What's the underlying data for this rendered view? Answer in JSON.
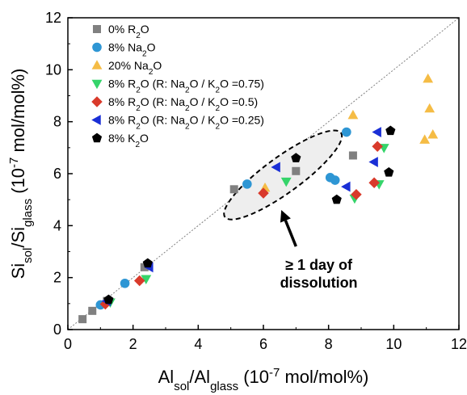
{
  "chart_data": {
    "type": "scatter",
    "xlim": [
      0,
      12
    ],
    "ylim": [
      0,
      12
    ],
    "x_ticks": [
      0,
      2,
      4,
      6,
      8,
      10,
      12
    ],
    "y_ticks": [
      0,
      2,
      4,
      6,
      8,
      10,
      12
    ],
    "x_tick_labels": [
      "0",
      "2",
      "4",
      "6",
      "8",
      "10",
      "12"
    ],
    "y_tick_labels": [
      "0",
      "2",
      "4",
      "6",
      "8",
      "10",
      "12"
    ],
    "xlabel": {
      "pre": "Al",
      "sub1": "sol",
      "mid": "/Al",
      "sub2": "glass",
      "post": " (10",
      "sup": "-7",
      "tail": " mol/mol%)"
    },
    "ylabel": {
      "pre": "Si",
      "sub1": "sol",
      "mid": "/Si",
      "sub2": "glass",
      "post": " (10",
      "sup": "-7",
      "tail": " mol/mol%)"
    },
    "reference_line": {
      "style": "dashed",
      "color": "#808080",
      "from": [
        0,
        0
      ],
      "to": [
        12,
        12
      ]
    },
    "grid": false,
    "legend_position": "top-left",
    "series": [
      {
        "name": "0% R2O",
        "label": [
          {
            "t": "0% R"
          },
          {
            "t": "2",
            "sub": true
          },
          {
            "t": "O"
          }
        ],
        "marker": "square",
        "color": "#808080",
        "points": [
          [
            0.45,
            0.4
          ],
          [
            0.75,
            0.72
          ],
          [
            1.2,
            1.1
          ],
          [
            2.35,
            2.4
          ],
          [
            5.1,
            5.4
          ],
          [
            7.0,
            6.1
          ],
          [
            8.75,
            6.7
          ]
        ]
      },
      {
        "name": "8% Na2O",
        "label": [
          {
            "t": "8% Na"
          },
          {
            "t": "2",
            "sub": true
          },
          {
            "t": "O"
          }
        ],
        "marker": "circle",
        "color": "#2e96d4",
        "points": [
          [
            1.0,
            0.95
          ],
          [
            1.75,
            1.78
          ],
          [
            5.5,
            5.6
          ],
          [
            8.05,
            5.85
          ],
          [
            8.2,
            5.75
          ],
          [
            8.55,
            7.6
          ]
        ]
      },
      {
        "name": "20% Na2O",
        "label": [
          {
            "t": "20% Na"
          },
          {
            "t": "2",
            "sub": true
          },
          {
            "t": "O"
          }
        ],
        "marker": "triangle-up",
        "color": "#f5bc45",
        "points": [
          [
            6.05,
            5.45
          ],
          [
            8.75,
            8.25
          ],
          [
            10.95,
            7.3
          ],
          [
            11.05,
            9.65
          ],
          [
            11.1,
            8.5
          ],
          [
            11.2,
            7.5
          ]
        ]
      },
      {
        "name": "8% R2O (R: Na2O / K2O =0.75)",
        "label": [
          {
            "t": "8% R"
          },
          {
            "t": "2",
            "sub": true
          },
          {
            "t": "O (R: Na"
          },
          {
            "t": "2",
            "sub": true
          },
          {
            "t": "O / K"
          },
          {
            "t": "2",
            "sub": true
          },
          {
            "t": "O =0.75)"
          }
        ],
        "marker": "triangle-down",
        "color": "#35d46a",
        "points": [
          [
            1.3,
            1.05
          ],
          [
            2.4,
            1.95
          ],
          [
            6.7,
            5.7
          ],
          [
            8.8,
            5.05
          ],
          [
            9.55,
            5.6
          ],
          [
            9.7,
            7.0
          ]
        ]
      },
      {
        "name": "8% R2O (R: Na2O / K2O =0.5)",
        "label": [
          {
            "t": "8% R"
          },
          {
            "t": "2",
            "sub": true
          },
          {
            "t": "O (R: Na"
          },
          {
            "t": "2",
            "sub": true
          },
          {
            "t": "O / K"
          },
          {
            "t": "2",
            "sub": true
          },
          {
            "t": "O =0.5)"
          }
        ],
        "marker": "diamond",
        "color": "#d93a2b",
        "points": [
          [
            1.15,
            0.98
          ],
          [
            2.2,
            1.88
          ],
          [
            6.0,
            5.25
          ],
          [
            8.85,
            5.2
          ],
          [
            9.4,
            5.65
          ],
          [
            9.5,
            7.05
          ]
        ]
      },
      {
        "name": "8% R2O (R: Na2O / K2O =0.25)",
        "label": [
          {
            "t": "8% R"
          },
          {
            "t": "2",
            "sub": true
          },
          {
            "t": "O (R: Na"
          },
          {
            "t": "2",
            "sub": true
          },
          {
            "t": "O / K"
          },
          {
            "t": "2",
            "sub": true
          },
          {
            "t": "O =0.25)"
          }
        ],
        "marker": "triangle-left",
        "color": "#1a2fd6",
        "points": [
          [
            1.2,
            1.1
          ],
          [
            2.5,
            2.4
          ],
          [
            6.4,
            6.25
          ],
          [
            8.55,
            5.5
          ],
          [
            9.4,
            6.45
          ],
          [
            9.5,
            7.6
          ]
        ]
      },
      {
        "name": "8% K2O",
        "label": [
          {
            "t": "8% K"
          },
          {
            "t": "2",
            "sub": true
          },
          {
            "t": "O"
          }
        ],
        "marker": "pentagon",
        "color": "#000000",
        "points": [
          [
            1.25,
            1.15
          ],
          [
            2.45,
            2.55
          ],
          [
            7.0,
            6.6
          ],
          [
            8.25,
            5.0
          ],
          [
            9.85,
            6.05
          ],
          [
            9.9,
            7.65
          ]
        ]
      }
    ],
    "annotations": [
      {
        "type": "ellipse",
        "center": [
          6.6,
          5.95
        ],
        "rx_data": 2.2,
        "ry_data": 0.55,
        "angle_deg": -36,
        "fill": "#eeeeee",
        "stroke": "#000000",
        "dash": true
      },
      {
        "type": "arrow",
        "from": [
          7.0,
          3.2
        ],
        "to": [
          6.55,
          4.6
        ]
      },
      {
        "type": "text",
        "lines": [
          "≥ 1 day of",
          "dissolution"
        ],
        "anchor": [
          7.7,
          2.3
        ]
      }
    ]
  }
}
